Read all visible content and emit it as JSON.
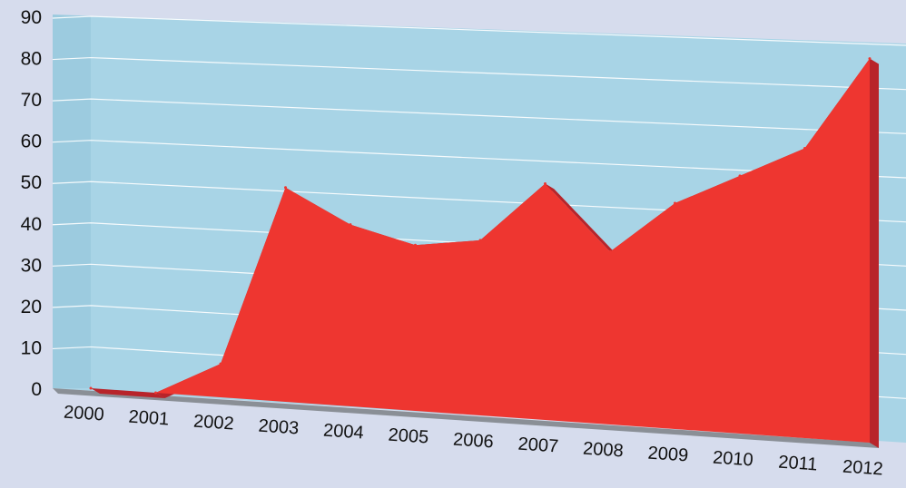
{
  "chart_data": {
    "type": "area",
    "title": "",
    "xlabel": "",
    "ylabel": "",
    "x": [
      "2000",
      "2001",
      "2002",
      "2003",
      "2004",
      "2005",
      "2006",
      "2007",
      "2008",
      "2009",
      "2010",
      "2011",
      "2012"
    ],
    "series": [
      {
        "values": [
          0,
          0,
          8,
          51,
          43,
          39,
          41,
          55,
          40,
          52,
          59,
          66,
          87
        ]
      }
    ],
    "yticks": [
      "0",
      "10",
      "20",
      "30",
      "40",
      "50",
      "60",
      "70",
      "80",
      "90"
    ],
    "ylim": [
      0,
      90
    ],
    "grid": true,
    "legend": "none",
    "colors": {
      "background": "#d6dced",
      "wall": "#a8d4e6",
      "area": "#ee3630",
      "area_side": "#b8242a",
      "floor": "#8a8f96",
      "grid": "#ffffff"
    }
  }
}
